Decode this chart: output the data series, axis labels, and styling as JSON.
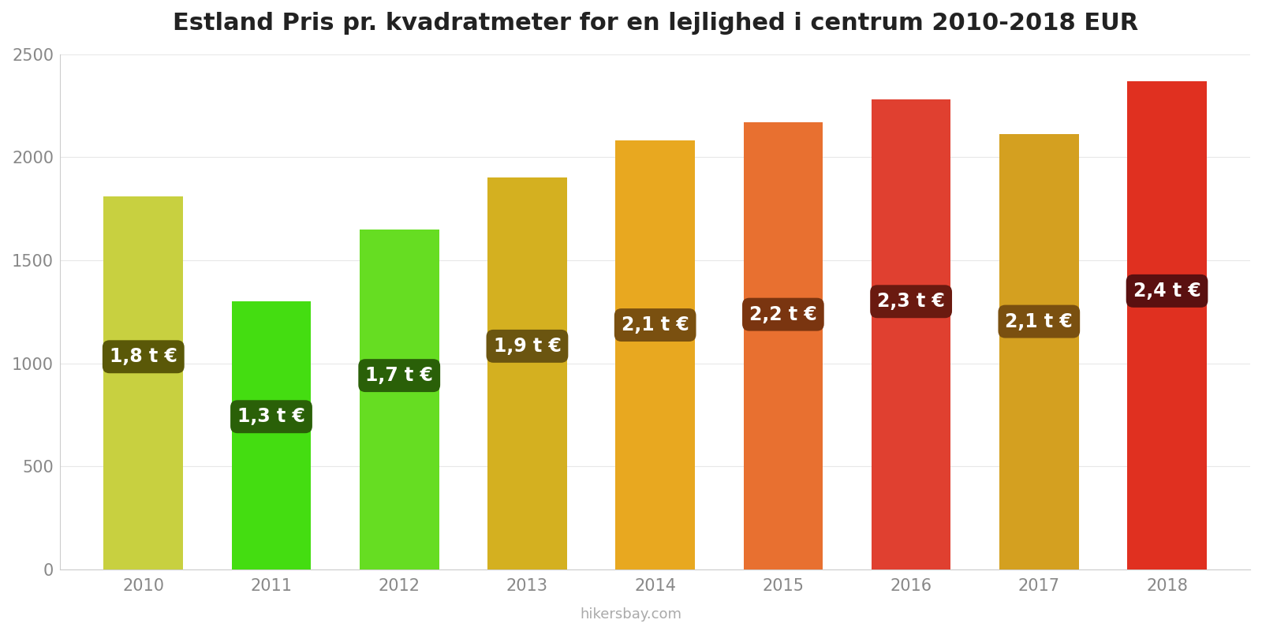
{
  "title": "Estland Pris pr. kvadratmeter for en lejlighed i centrum 2010-2018 EUR",
  "years": [
    2010,
    2011,
    2012,
    2013,
    2014,
    2015,
    2016,
    2017,
    2018
  ],
  "values": [
    1810,
    1300,
    1650,
    1900,
    2080,
    2170,
    2280,
    2110,
    2370
  ],
  "labels": [
    "1,8 t €",
    "1,3 t €",
    "1,7 t €",
    "1,9 t €",
    "2,1 t €",
    "2,2 t €",
    "2,3 t €",
    "2,1 t €",
    "2,4 t €"
  ],
  "bar_colors": [
    "#c8d040",
    "#44dd11",
    "#66dd22",
    "#d4b020",
    "#e8a820",
    "#e87030",
    "#e04030",
    "#d4a020",
    "#e03020"
  ],
  "label_bg_colors": [
    "#5a5808",
    "#2a6008",
    "#2a6008",
    "#6b5510",
    "#7a5010",
    "#7a3510",
    "#6a1a10",
    "#7a5010",
    "#5a1010"
  ],
  "ylim": [
    0,
    2500
  ],
  "yticks": [
    0,
    500,
    1000,
    1500,
    2000,
    2500
  ],
  "watermark": "hikersbay.com",
  "background_color": "#ffffff",
  "title_fontsize": 22,
  "label_fontsize": 17,
  "tick_fontsize": 15,
  "bar_width": 0.62
}
